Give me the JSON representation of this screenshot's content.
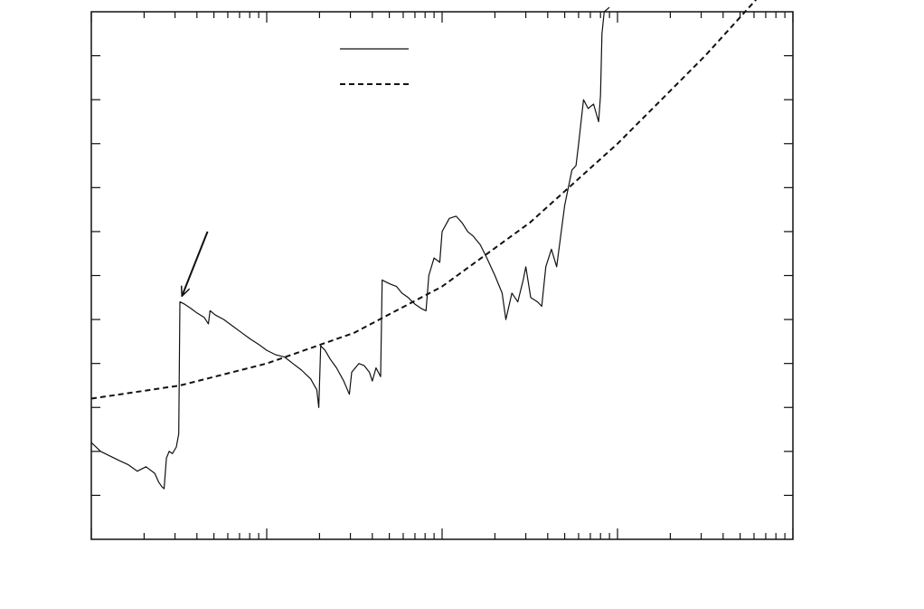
{
  "chart_data": {
    "type": "line",
    "title": "",
    "xlabel": "",
    "ylabel": "",
    "xscale": "log",
    "xlim": [
      1,
      10000
    ],
    "ylim": [
      0,
      12
    ],
    "grid": false,
    "legend_position": "top-left",
    "series": [
      {
        "style": "solid",
        "color": "#111111",
        "points": [
          [
            1.0,
            2.2
          ],
          [
            1.13,
            2.0
          ],
          [
            1.27,
            1.9
          ],
          [
            1.43,
            1.8
          ],
          [
            1.62,
            1.7
          ],
          [
            1.83,
            1.55
          ],
          [
            2.05,
            1.65
          ],
          [
            2.3,
            1.5
          ],
          [
            2.42,
            1.3
          ],
          [
            2.52,
            1.2
          ],
          [
            2.6,
            1.15
          ],
          [
            2.68,
            1.85
          ],
          [
            2.78,
            2.0
          ],
          [
            2.9,
            1.95
          ],
          [
            3.05,
            2.1
          ],
          [
            3.15,
            2.4
          ],
          [
            3.2,
            5.4
          ],
          [
            3.4,
            5.35
          ],
          [
            3.7,
            5.25
          ],
          [
            4.0,
            5.15
          ],
          [
            4.4,
            5.05
          ],
          [
            4.65,
            4.9
          ],
          [
            4.75,
            5.2
          ],
          [
            5.1,
            5.1
          ],
          [
            5.7,
            5.0
          ],
          [
            6.4,
            4.85
          ],
          [
            7.2,
            4.7
          ],
          [
            8.1,
            4.55
          ],
          [
            9.1,
            4.42
          ],
          [
            10.0,
            4.3
          ],
          [
            11.2,
            4.2
          ],
          [
            12.6,
            4.15
          ],
          [
            14.1,
            4.0
          ],
          [
            15.8,
            3.85
          ],
          [
            17.8,
            3.65
          ],
          [
            19.3,
            3.4
          ],
          [
            19.8,
            3.0
          ],
          [
            20.3,
            4.4
          ],
          [
            21.5,
            4.3
          ],
          [
            23.0,
            4.1
          ],
          [
            25.0,
            3.9
          ],
          [
            27.5,
            3.6
          ],
          [
            29.6,
            3.3
          ],
          [
            30.5,
            3.8
          ],
          [
            33.5,
            4.0
          ],
          [
            36.0,
            3.95
          ],
          [
            38.5,
            3.8
          ],
          [
            40.0,
            3.6
          ],
          [
            42.0,
            3.9
          ],
          [
            44.6,
            3.7
          ],
          [
            45.5,
            5.9
          ],
          [
            48.0,
            5.85
          ],
          [
            51.0,
            5.8
          ],
          [
            55.0,
            5.75
          ],
          [
            59.0,
            5.6
          ],
          [
            64.0,
            5.5
          ],
          [
            70.0,
            5.35
          ],
          [
            76.0,
            5.25
          ],
          [
            81.0,
            5.2
          ],
          [
            84.0,
            6.0
          ],
          [
            90.0,
            6.4
          ],
          [
            97.0,
            6.3
          ],
          [
            100.0,
            7.0
          ],
          [
            110.0,
            7.3
          ],
          [
            120.0,
            7.35
          ],
          [
            130.0,
            7.2
          ],
          [
            140.0,
            7.0
          ],
          [
            150.0,
            6.9
          ],
          [
            165.0,
            6.7
          ],
          [
            180.0,
            6.4
          ],
          [
            200.0,
            6.0
          ],
          [
            220.0,
            5.6
          ],
          [
            231.0,
            5.0
          ],
          [
            250.0,
            5.6
          ],
          [
            270.0,
            5.4
          ],
          [
            290.0,
            5.9
          ],
          [
            300.0,
            6.2
          ],
          [
            320.0,
            5.5
          ],
          [
            350.0,
            5.4
          ],
          [
            370.0,
            5.3
          ],
          [
            390.0,
            6.2
          ],
          [
            420.0,
            6.6
          ],
          [
            450.0,
            6.2
          ],
          [
            500.0,
            7.6
          ],
          [
            550.0,
            8.4
          ],
          [
            580.0,
            8.5
          ],
          [
            600.0,
            9.0
          ],
          [
            640.0,
            10.0
          ],
          [
            680.0,
            9.8
          ],
          [
            730.0,
            9.9
          ],
          [
            780.0,
            9.5
          ],
          [
            800.0,
            10.1
          ],
          [
            815.0,
            11.5
          ],
          [
            840.0,
            12.0
          ],
          [
            900.0,
            12.1
          ]
        ]
      },
      {
        "style": "dashed",
        "color": "#111111",
        "points": [
          [
            1,
            3.2
          ],
          [
            3.2,
            3.5
          ],
          [
            10,
            4.0
          ],
          [
            31.6,
            4.7
          ],
          [
            100,
            5.75
          ],
          [
            316,
            7.2
          ],
          [
            1000,
            9.0
          ],
          [
            3162,
            11.0
          ],
          [
            10000,
            13.2
          ]
        ]
      }
    ],
    "annotations": [
      {
        "type": "arrow",
        "from": [
          4.6,
          7.0
        ],
        "to": [
          3.3,
          5.55
        ]
      }
    ]
  }
}
